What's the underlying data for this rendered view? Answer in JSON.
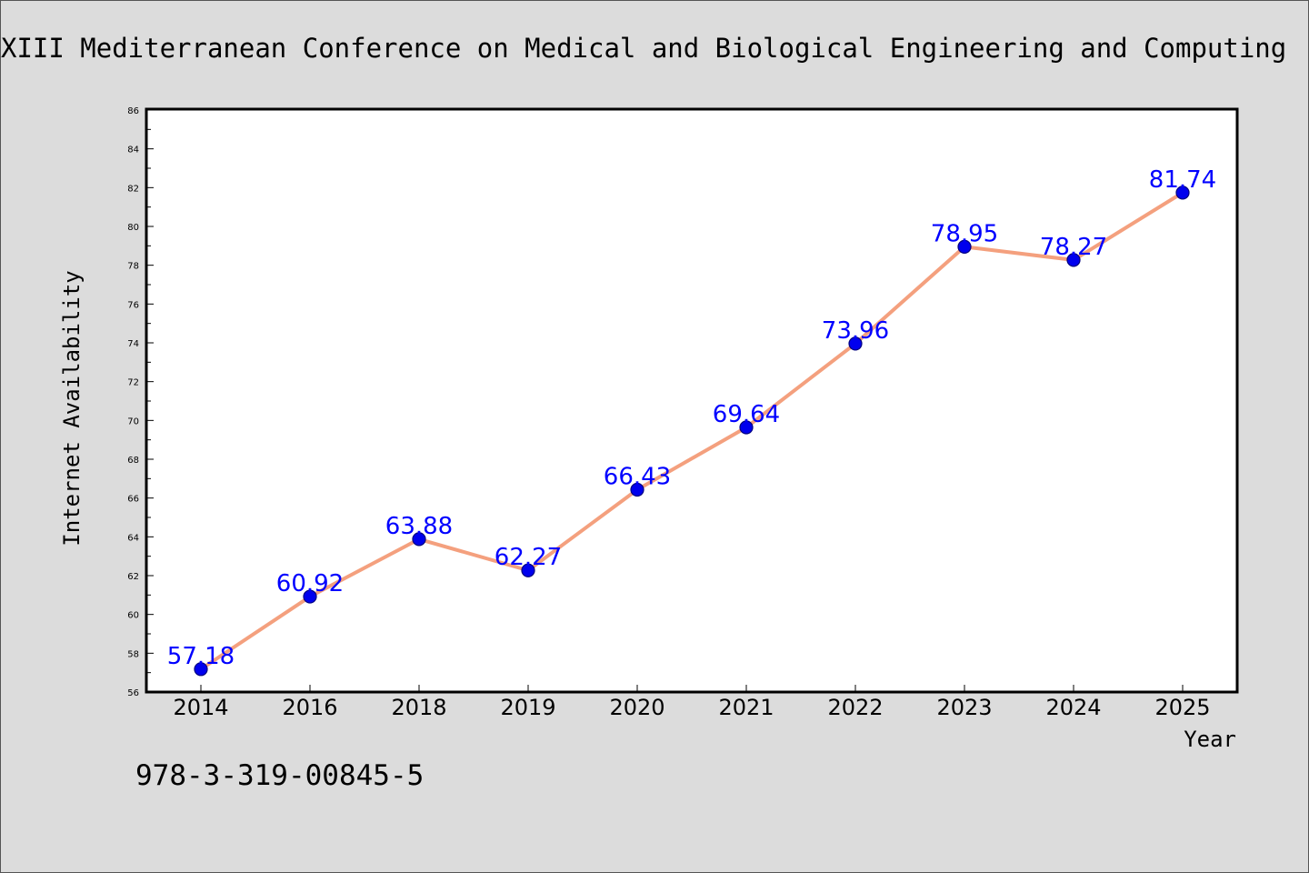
{
  "chart_data": {
    "type": "line",
    "title": "XIII Mediterranean Conference on Medical and Biological Engineering and Computing",
    "xlabel": "Year",
    "ylabel": "Internet Availability",
    "categories": [
      "2014",
      "2016",
      "2018",
      "2019",
      "2020",
      "2021",
      "2022",
      "2023",
      "2024",
      "2025"
    ],
    "series": [
      {
        "values": [
          57.18,
          60.92,
          63.88,
          62.27,
          66.43,
          69.64,
          73.96,
          78.95,
          78.27,
          81.74
        ]
      }
    ],
    "data_labels": [
      "57.18",
      "60.92",
      "63.88",
      "62.27",
      "66.43",
      "69.64",
      "73.96",
      "78.95",
      "78.27",
      "81.74"
    ],
    "ylim": [
      56,
      86
    ],
    "yticks": [
      "56",
      "58",
      "60",
      "62",
      "64",
      "66",
      "68",
      "70",
      "72",
      "74",
      "76",
      "78",
      "80",
      "82",
      "84",
      "86"
    ],
    "grid": false,
    "legend": "none",
    "colors": {
      "line": "#f4a07e",
      "marker": "#0000ee",
      "label": "#0000ff",
      "background": "#dcdcdc",
      "plot_background": "#ffffff"
    }
  },
  "footer": {
    "isbn": "978-3-319-00845-5"
  }
}
